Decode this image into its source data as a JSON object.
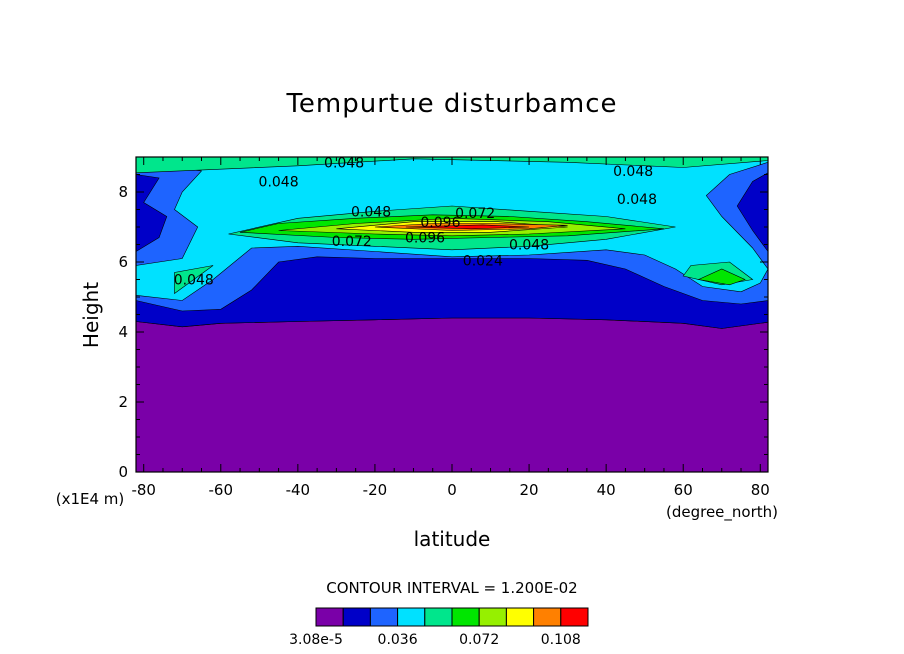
{
  "chart_data": {
    "type": "heatmap",
    "title": "Tempurtue disturbamce",
    "xlabel": "latitude",
    "ylabel": "Height",
    "x_units_label": "(degree_north)",
    "y_units_label": "(x1E4 m)",
    "xlim": [
      -82,
      82
    ],
    "ylim": [
      0,
      9
    ],
    "x_ticks": [
      -80,
      -60,
      -40,
      -20,
      0,
      20,
      40,
      60,
      80
    ],
    "x_tick_labels": [
      "-80",
      "-60",
      "-40",
      "-20",
      "0",
      "20",
      "40",
      "60",
      "80"
    ],
    "y_ticks": [
      0,
      2,
      4,
      6,
      8
    ],
    "y_tick_labels": [
      "0",
      "2",
      "4",
      "6",
      "8"
    ],
    "contour_interval_text": "CONTOUR INTERVAL = 1.200E-02",
    "contour_interval": 0.012,
    "levels": [
      3.08e-05,
      0.012,
      0.024,
      0.036,
      0.048,
      0.06,
      0.072,
      0.084,
      0.096,
      0.108
    ],
    "colors": [
      "#7a00a8",
      "#0000c8",
      "#1e64ff",
      "#00e1ff",
      "#00e68c",
      "#00e600",
      "#96f000",
      "#ffff00",
      "#ff8000",
      "#ff0000"
    ],
    "colorbar_tick_labels": [
      {
        "level": 3.08e-05,
        "label": "3.08e-5"
      },
      {
        "level": 0.036,
        "label": "0.036"
      },
      {
        "level": 0.072,
        "label": "0.072"
      },
      {
        "level": 0.108,
        "label": "0.108"
      }
    ],
    "regions": [
      {
        "level": 0,
        "points": [
          [
            -82,
            0
          ],
          [
            82,
            0
          ],
          [
            82,
            4.28
          ],
          [
            70,
            4.1
          ],
          [
            60,
            4.25
          ],
          [
            40,
            4.35
          ],
          [
            20,
            4.4
          ],
          [
            0,
            4.4
          ],
          [
            -20,
            4.35
          ],
          [
            -40,
            4.3
          ],
          [
            -60,
            4.25
          ],
          [
            -70,
            4.15
          ],
          [
            -82,
            4.3
          ]
        ]
      },
      {
        "level": 1,
        "points": [
          [
            -82,
            4.3
          ],
          [
            -70,
            4.15
          ],
          [
            -60,
            4.25
          ],
          [
            -40,
            4.3
          ],
          [
            -20,
            4.35
          ],
          [
            0,
            4.4
          ],
          [
            20,
            4.4
          ],
          [
            40,
            4.35
          ],
          [
            60,
            4.25
          ],
          [
            70,
            4.1
          ],
          [
            82,
            4.28
          ],
          [
            82,
            9
          ],
          [
            -82,
            9
          ]
        ]
      },
      {
        "level": 2,
        "points": [
          [
            -82,
            4.9
          ],
          [
            -70,
            4.6
          ],
          [
            -60,
            4.65
          ],
          [
            -52,
            5.2
          ],
          [
            -45,
            6
          ],
          [
            -35,
            6.15
          ],
          [
            -20,
            6.1
          ],
          [
            0,
            6.1
          ],
          [
            20,
            6.1
          ],
          [
            35,
            6.05
          ],
          [
            45,
            5.8
          ],
          [
            55,
            5.3
          ],
          [
            65,
            4.9
          ],
          [
            75,
            4.8
          ],
          [
            82,
            4.9
          ],
          [
            82,
            6.3
          ],
          [
            78,
            6.9
          ],
          [
            74,
            7.6
          ],
          [
            78,
            8.3
          ],
          [
            82,
            8.55
          ],
          [
            82,
            9
          ],
          [
            -82,
            9
          ],
          [
            -82,
            8.5
          ],
          [
            -76,
            8.4
          ],
          [
            -80,
            7.7
          ],
          [
            -74,
            7.3
          ],
          [
            -76,
            6.7
          ],
          [
            -82,
            6.3
          ]
        ]
      },
      {
        "level": 3,
        "points": [
          [
            -82,
            5.05
          ],
          [
            -70,
            4.9
          ],
          [
            -62,
            5.5
          ],
          [
            -52,
            6.4
          ],
          [
            -40,
            6.45
          ],
          [
            -20,
            6.3
          ],
          [
            0,
            6.15
          ],
          [
            20,
            6.2
          ],
          [
            40,
            6.35
          ],
          [
            50,
            6.2
          ],
          [
            58,
            5.8
          ],
          [
            65,
            5.3
          ],
          [
            75,
            5.15
          ],
          [
            80,
            5.4
          ],
          [
            82,
            5.8
          ],
          [
            78,
            6.4
          ],
          [
            70,
            7.3
          ],
          [
            66,
            7.9
          ],
          [
            72,
            8.5
          ],
          [
            82,
            8.85
          ],
          [
            82,
            9
          ],
          [
            -82,
            9
          ],
          [
            -82,
            8.85
          ],
          [
            -65,
            8.6
          ],
          [
            -70,
            8
          ],
          [
            -72,
            7.5
          ],
          [
            -66,
            7
          ],
          [
            -70,
            6.1
          ],
          [
            -82,
            5.9
          ]
        ]
      },
      {
        "level": 4,
        "points": [
          [
            -72,
            5.1
          ],
          [
            -62,
            5.9
          ],
          [
            -72,
            5.7
          ]
        ],
        "extra": [
          [
            [
              -58,
              6.8
            ],
            [
              -40,
              6.55
            ],
            [
              -20,
              6.45
            ],
            [
              0,
              6.35
            ],
            [
              20,
              6.45
            ],
            [
              40,
              6.65
            ],
            [
              58,
              7
            ],
            [
              40,
              7.3
            ],
            [
              20,
              7.45
            ],
            [
              0,
              7.6
            ],
            [
              -20,
              7.45
            ],
            [
              -40,
              7.25
            ]
          ],
          [
            [
              -82,
              8.55
            ],
            [
              -40,
              8.75
            ],
            [
              -10,
              8.95
            ],
            [
              30,
              8.85
            ],
            [
              60,
              8.7
            ],
            [
              82,
              8.9
            ],
            [
              82,
              9
            ],
            [
              -82,
              9
            ]
          ],
          [
            [
              60,
              5.6
            ],
            [
              70,
              5.35
            ],
            [
              78,
              5.5
            ],
            [
              72,
              6
            ],
            [
              62,
              5.9
            ]
          ]
        ]
      },
      {
        "level": 5,
        "points": [
          [
            -55,
            6.85
          ],
          [
            -30,
            6.7
          ],
          [
            -10,
            6.65
          ],
          [
            10,
            6.7
          ],
          [
            30,
            6.75
          ],
          [
            55,
            6.95
          ],
          [
            35,
            7.15
          ],
          [
            15,
            7.3
          ],
          [
            -5,
            7.35
          ],
          [
            -25,
            7.25
          ],
          [
            -45,
            7.1
          ]
        ],
        "extra": [
          [
            [
              64,
              5.5
            ],
            [
              72,
              5.35
            ],
            [
              76,
              5.5
            ],
            [
              70,
              5.8
            ]
          ]
        ]
      },
      {
        "level": 6,
        "points": [
          [
            -45,
            6.9
          ],
          [
            -20,
            6.8
          ],
          [
            0,
            6.75
          ],
          [
            20,
            6.8
          ],
          [
            45,
            6.95
          ],
          [
            25,
            7.15
          ],
          [
            0,
            7.25
          ],
          [
            -25,
            7.1
          ]
        ]
      },
      {
        "level": 7,
        "points": [
          [
            -30,
            6.95
          ],
          [
            -10,
            6.85
          ],
          [
            10,
            6.85
          ],
          [
            30,
            7.0
          ],
          [
            12,
            7.15
          ],
          [
            -10,
            7.15
          ]
        ]
      },
      {
        "level": 8,
        "points": [
          [
            -20,
            7.0
          ],
          [
            0,
            6.9
          ],
          [
            20,
            6.95
          ],
          [
            30,
            7.05
          ],
          [
            10,
            7.1
          ],
          [
            -5,
            7.1
          ]
        ]
      },
      {
        "level": 9,
        "points": [
          [
            -12,
            7.0
          ],
          [
            5,
            6.95
          ],
          [
            20,
            7.0
          ],
          [
            8,
            7.06
          ]
        ]
      }
    ],
    "contour_labels": [
      {
        "x": -28,
        "y": 8.85,
        "text": "0.048"
      },
      {
        "x": 47,
        "y": 8.6,
        "text": "0.048"
      },
      {
        "x": -45,
        "y": 8.3,
        "text": "0.048"
      },
      {
        "x": 48,
        "y": 7.8,
        "text": "0.048"
      },
      {
        "x": -21,
        "y": 7.45,
        "text": "0.048"
      },
      {
        "x": -3,
        "y": 7.15,
        "text": "0.096"
      },
      {
        "x": 6,
        "y": 7.4,
        "text": "0.072"
      },
      {
        "x": -26,
        "y": 6.6,
        "text": "0.072"
      },
      {
        "x": -7,
        "y": 6.7,
        "text": "0.096"
      },
      {
        "x": 20,
        "y": 6.5,
        "text": "0.048"
      },
      {
        "x": 8,
        "y": 6.05,
        "text": "0.024"
      },
      {
        "x": -67,
        "y": 5.5,
        "text": "0.048"
      }
    ]
  }
}
